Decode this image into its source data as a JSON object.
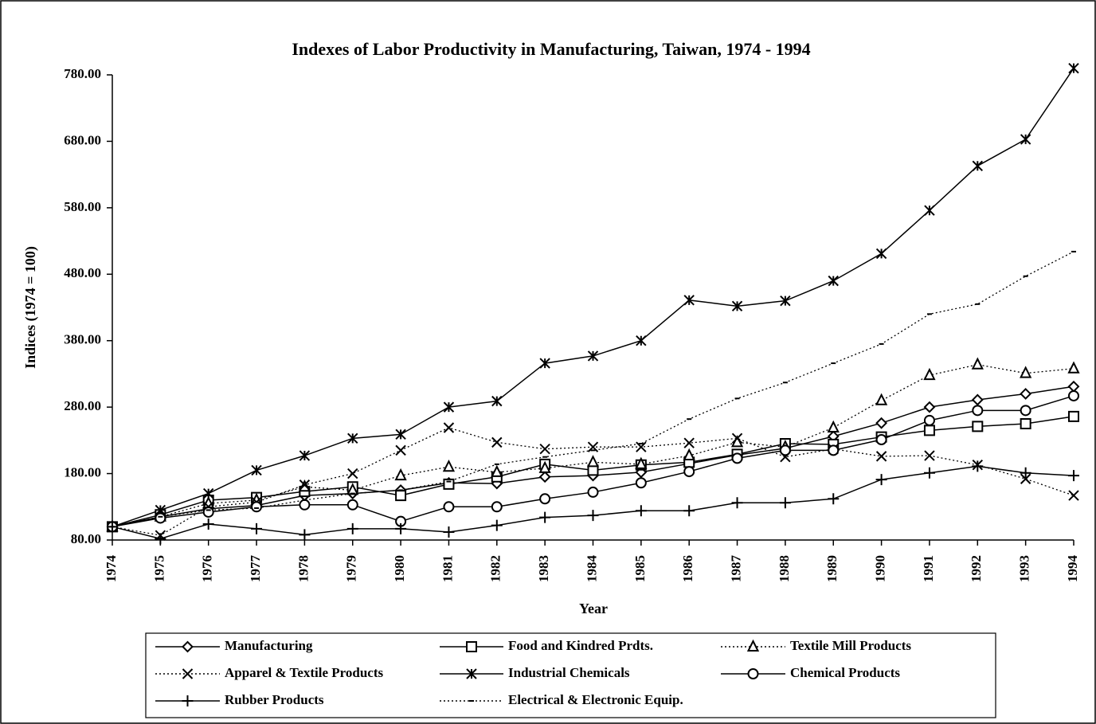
{
  "chart_data": {
    "type": "line",
    "title": "Indexes of Labor Productivity in Manufacturing, Taiwan, 1974 - 1994",
    "xlabel": "Year",
    "ylabel": "Indices (1974 = 100)",
    "categories": [
      "1974",
      "1975",
      "1976",
      "1977",
      "1978",
      "1979",
      "1980",
      "1981",
      "1982",
      "1983",
      "1984",
      "1985",
      "1986",
      "1987",
      "1988",
      "1989",
      "1990",
      "1991",
      "1992",
      "1993",
      "1994"
    ],
    "ylim": [
      80,
      780
    ],
    "yticks": [
      {
        "value": 80,
        "label": "80.00"
      },
      {
        "value": 180,
        "label": "180.00"
      },
      {
        "value": 280,
        "label": "280.00"
      },
      {
        "value": 380,
        "label": "380.00"
      },
      {
        "value": 480,
        "label": "480.00"
      },
      {
        "value": 580,
        "label": "580.00"
      },
      {
        "value": 680,
        "label": "680.00"
      },
      {
        "value": 780,
        "label": "780.00"
      }
    ],
    "series": [
      {
        "name": "Manufacturing",
        "color": "#000000",
        "marker": "diamond",
        "dash": "solid",
        "values": [
          100,
          115,
          127,
          132,
          147,
          150,
          155,
          166,
          165,
          175,
          177,
          182,
          195,
          208,
          218,
          236,
          256,
          280,
          291,
          300,
          311
        ]
      },
      {
        "name": "Food and  Kindred Prdts.",
        "color": "#000000",
        "marker": "square",
        "dash": "solid",
        "values": [
          100,
          118,
          140,
          144,
          153,
          160,
          147,
          164,
          175,
          194,
          185,
          193,
          197,
          209,
          225,
          224,
          235,
          245,
          251,
          255,
          266
        ]
      },
      {
        "name": "Textile Mill Products",
        "color": "#000000",
        "marker": "triangle",
        "dash": "dotted",
        "values": [
          100,
          115,
          135,
          140,
          160,
          155,
          177,
          190,
          182,
          188,
          197,
          194,
          207,
          227,
          220,
          249,
          290,
          328,
          344,
          331,
          338
        ]
      },
      {
        "name": "Apparel & Textile Products",
        "color": "#000000",
        "marker": "x",
        "dash": "dotted",
        "values": [
          100,
          87,
          130,
          137,
          163,
          180,
          215,
          249,
          227,
          217,
          220,
          220,
          226,
          233,
          205,
          217,
          206,
          207,
          193,
          172,
          147
        ]
      },
      {
        "name": "Industrial Chemicals",
        "color": "#000000",
        "marker": "star",
        "dash": "solid",
        "values": [
          100,
          125,
          150,
          185,
          207,
          233,
          239,
          280,
          289,
          346,
          357,
          380,
          441,
          432,
          440,
          470,
          511,
          576,
          643,
          683,
          790
        ]
      },
      {
        "name": "Chemical Products",
        "color": "#000000",
        "marker": "circle",
        "dash": "solid",
        "values": [
          100,
          113,
          122,
          130,
          133,
          133,
          108,
          130,
          130,
          142,
          152,
          166,
          183,
          203,
          215,
          215,
          231,
          260,
          275,
          275,
          297
        ]
      },
      {
        "name": "Rubber Products",
        "color": "#000000",
        "marker": "plus",
        "dash": "solid",
        "values": [
          100,
          82,
          104,
          97,
          88,
          97,
          97,
          92,
          102,
          114,
          117,
          124,
          124,
          136,
          136,
          142,
          171,
          181,
          191,
          181,
          177
        ]
      },
      {
        "name": "Electrical & Electronic Equip.",
        "color": "#000000",
        "marker": "dash",
        "dash": "dotted",
        "values": [
          100,
          115,
          125,
          128,
          140,
          150,
          155,
          168,
          194,
          205,
          215,
          225,
          262,
          293,
          317,
          346,
          375,
          420,
          435,
          477,
          514
        ]
      }
    ]
  }
}
